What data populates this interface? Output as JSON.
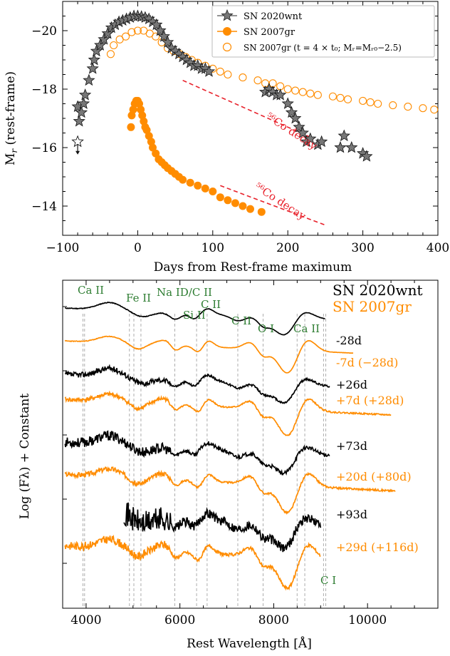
{
  "chart_data": [
    {
      "type": "scatter",
      "xlabel": "Days from Rest-frame maximum",
      "ylabel": "M_r (rest-frame)",
      "xlim": [
        -100,
        400
      ],
      "ylim": [
        -13,
        -21
      ],
      "y_inverted": true,
      "xticks": [
        "−100",
        "0",
        "100",
        "200",
        "300",
        "400"
      ],
      "yticks": [
        "−20",
        "−18",
        "−16",
        "−14"
      ],
      "ytick_values": [
        -20,
        -18,
        -16,
        -14
      ],
      "xtick_values": [
        -100,
        0,
        100,
        200,
        300,
        400
      ],
      "legend": {
        "position": "top-right",
        "entries": [
          {
            "label": "SN 2020wnt",
            "marker": "star",
            "color": "#555555"
          },
          {
            "label": "SN 2007gr",
            "marker": "filled-circle",
            "color": "#FF8C00"
          },
          {
            "label": "SN 2007gr (t = 4 × t₀; Mᵣ=Mᵣ₀−2.5)",
            "marker": "open-circle",
            "color": "#FF8C00"
          }
        ]
      },
      "series": [
        {
          "name": "SN 2020wnt",
          "x": [
            -80,
            -78,
            -75,
            -72,
            -70,
            -65,
            -60,
            -58,
            -55,
            -50,
            -45,
            -40,
            -35,
            -30,
            -25,
            -20,
            -15,
            -10,
            -5,
            0,
            5,
            10,
            15,
            20,
            25,
            30,
            35,
            40,
            45,
            50,
            55,
            60,
            65,
            70,
            75,
            80,
            85,
            90,
            95,
            170,
            175,
            180,
            185,
            190,
            200,
            205,
            210,
            215,
            220,
            225,
            230,
            240,
            245,
            270,
            275,
            285,
            300,
            305
          ],
          "y": [
            -17.4,
            -16.9,
            -17.2,
            -17.5,
            -17.8,
            -18.3,
            -18.7,
            -19.0,
            -19.3,
            -19.5,
            -19.7,
            -19.9,
            -20.1,
            -20.2,
            -20.3,
            -20.35,
            -20.4,
            -20.45,
            -20.5,
            -20.5,
            -20.48,
            -20.45,
            -20.4,
            -20.3,
            -20.2,
            -20.0,
            -19.8,
            -19.6,
            -19.4,
            -19.3,
            -19.2,
            -19.1,
            -19.0,
            -18.9,
            -18.8,
            -18.8,
            -18.7,
            -18.7,
            -18.6,
            -17.9,
            -18.0,
            -17.9,
            -17.8,
            -17.8,
            -17.5,
            -17.2,
            -17.0,
            -16.7,
            -16.5,
            -16.2,
            -16.3,
            -16.1,
            -16.2,
            -16.0,
            -16.4,
            -16.0,
            -15.8,
            -15.7
          ],
          "upper_limits": [
            {
              "x": -80,
              "y": -16.2
            }
          ]
        },
        {
          "name": "SN 2007gr",
          "x": [
            -9,
            -8,
            -6,
            -4,
            -2,
            0,
            2,
            4,
            6,
            8,
            10,
            12,
            15,
            18,
            20,
            24,
            28,
            32,
            36,
            40,
            45,
            50,
            55,
            60,
            70,
            80,
            90,
            100,
            110,
            120,
            130,
            140,
            150,
            165
          ],
          "y": [
            -16.7,
            -17.1,
            -17.3,
            -17.5,
            -17.6,
            -17.6,
            -17.5,
            -17.3,
            -17.1,
            -16.9,
            -16.7,
            -16.6,
            -16.4,
            -16.2,
            -16.0,
            -15.8,
            -15.6,
            -15.5,
            -15.4,
            -15.3,
            -15.2,
            -15.1,
            -15.0,
            -14.9,
            -14.8,
            -14.7,
            -14.6,
            -14.5,
            -14.3,
            -14.2,
            -14.1,
            -14.0,
            -13.9,
            -13.8
          ]
        },
        {
          "name": "SN 2007gr (t = 4 × t₀; Mᵣ=Mᵣ₀−2.5)",
          "x": [
            -36,
            -32,
            -24,
            -16,
            -8,
            0,
            8,
            16,
            24,
            32,
            40,
            48,
            56,
            64,
            72,
            80,
            90,
            100,
            110,
            120,
            140,
            160,
            170,
            180,
            190,
            200,
            210,
            220,
            230,
            240,
            260,
            270,
            280,
            300,
            310,
            320,
            340,
            360,
            380,
            395
          ],
          "y": [
            -19.2,
            -19.5,
            -19.7,
            -19.8,
            -19.95,
            -20.0,
            -20.0,
            -19.9,
            -19.8,
            -19.6,
            -19.4,
            -19.3,
            -19.2,
            -19.1,
            -19.0,
            -18.9,
            -18.8,
            -18.7,
            -18.6,
            -18.5,
            -18.4,
            -18.3,
            -18.2,
            -18.2,
            -18.1,
            -18.0,
            -17.95,
            -17.9,
            -17.85,
            -17.8,
            -17.75,
            -17.7,
            -17.65,
            -17.6,
            -17.55,
            -17.5,
            -17.45,
            -17.4,
            -17.35,
            -17.3
          ]
        }
      ],
      "annotations": [
        {
          "text": "⁵⁶Co decay",
          "color": "#E8202A",
          "x": 170,
          "y": -17.0,
          "angle": 33
        },
        {
          "text": "⁵⁶Co decay",
          "color": "#E8202A",
          "x": 155,
          "y": -14.6,
          "angle": 33
        }
      ],
      "decay_lines": [
        {
          "x": [
            60,
            235
          ],
          "y": [
            -18.3,
            -16.3
          ]
        },
        {
          "x": [
            110,
            250
          ],
          "y": [
            -14.7,
            -13.35
          ]
        }
      ]
    },
    {
      "type": "line",
      "xlabel": "Rest Wavelength [Å]",
      "ylabel": "Log (Fλ) + Constant",
      "xlim": [
        3500,
        11500
      ],
      "xticks": [
        "4000",
        "6000",
        "8000",
        "10000"
      ],
      "xtick_values": [
        4000,
        6000,
        8000,
        10000
      ],
      "legend_title": {
        "sn2020wnt": "SN 2020wnt",
        "sn2007gr": "SN 2007gr",
        "color_black": "#000000",
        "color_orange": "#FF8C00"
      },
      "line_labels": [
        {
          "text": "C I",
          "x": 9100
        }
      ],
      "line_ids": [
        {
          "text": "Ca II",
          "x": 3950
        },
        {
          "text": "Fe II",
          "x": 4950
        },
        {
          "text": "Na ID/C II",
          "x": 5900
        },
        {
          "text": "Si II",
          "x": 6350
        },
        {
          "text": "C II",
          "x": 6580
        },
        {
          "text": "C II",
          "x": 7240
        },
        {
          "text": "O I",
          "x": 7774
        },
        {
          "text": "Ca II",
          "x": 8600
        }
      ],
      "epoch_labels": [
        {
          "text": "-28d",
          "color": "#000000"
        },
        {
          "text": "-7d (−28d)",
          "color": "#FF8C00"
        },
        {
          "text": "+26d",
          "color": "#000000"
        },
        {
          "text": "+7d (+28d)",
          "color": "#FF8C00"
        },
        {
          "text": "+73d",
          "color": "#000000"
        },
        {
          "text": "+20d (+80d)",
          "color": "#FF8C00"
        },
        {
          "text": "+93d",
          "color": "#000000"
        },
        {
          "text": "+29d (+116d)",
          "color": "#FF8C00"
        }
      ],
      "series": [
        {
          "name": "SN 2020wnt -28d",
          "color": "#000000"
        },
        {
          "name": "SN 2007gr -7d",
          "color": "#FF8C00"
        },
        {
          "name": "SN 2020wnt +26d",
          "color": "#000000"
        },
        {
          "name": "SN 2007gr +7d",
          "color": "#FF8C00"
        },
        {
          "name": "SN 2020wnt +73d",
          "color": "#000000"
        },
        {
          "name": "SN 2007gr +20d",
          "color": "#FF8C00"
        },
        {
          "name": "SN 2020wnt +93d",
          "color": "#000000"
        },
        {
          "name": "SN 2007gr +29d",
          "color": "#FF8C00"
        }
      ]
    }
  ]
}
